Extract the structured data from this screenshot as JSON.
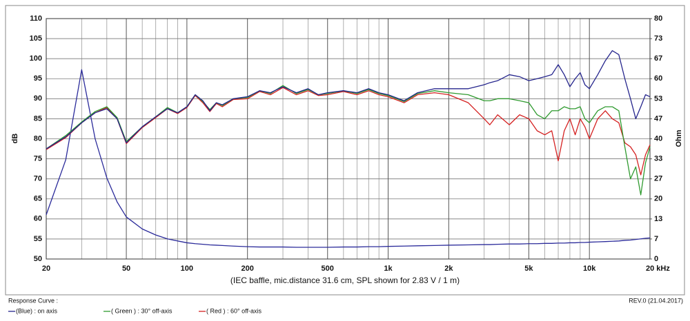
{
  "chart_data": {
    "type": "line",
    "subtitle": "(IEC baffle, mic.distance 31.6 cm, SPL shown for 2.83 V / 1 m)",
    "y_label": "dB",
    "y2_label": "Ohm",
    "legend_title": "Response Curve :",
    "revision": "REV.0 (21.04.2017)",
    "x_scale": "log",
    "grid": true,
    "xlim": [
      20,
      20000
    ],
    "xticks": [
      20,
      50,
      100,
      200,
      500,
      {
        "value": 1000,
        "label": "1k"
      },
      {
        "value": 2000,
        "label": "2k"
      },
      {
        "value": 5000,
        "label": "5k"
      },
      {
        "value": 10000,
        "label": "10k"
      },
      {
        "value": 20000,
        "label": "20 kHz"
      }
    ],
    "xgrid": [
      30,
      40,
      60,
      70,
      80,
      90,
      300,
      400,
      600,
      700,
      800,
      900,
      3000,
      4000,
      6000,
      7000,
      8000,
      9000
    ],
    "ylim": [
      50,
      110
    ],
    "yticks": [
      50,
      55,
      60,
      65,
      70,
      75,
      80,
      85,
      90,
      95,
      100,
      105,
      110
    ],
    "y2lim": [
      0,
      80
    ],
    "y2ticks": [
      0,
      {
        "value": 6.67,
        "label": "7"
      },
      {
        "value": 13.33,
        "label": "13"
      },
      20,
      {
        "value": 26.67,
        "label": "27"
      },
      {
        "value": 33.33,
        "label": "33"
      },
      40,
      {
        "value": 46.67,
        "label": "47"
      },
      {
        "value": 53.33,
        "label": "53"
      },
      60,
      {
        "value": 66.67,
        "label": "67"
      },
      {
        "value": 73.33,
        "label": "73"
      },
      80
    ],
    "x": [
      20,
      25,
      30,
      35,
      40,
      45,
      50,
      60,
      70,
      80,
      90,
      100,
      110,
      120,
      130,
      140,
      150,
      170,
      200,
      230,
      260,
      300,
      350,
      400,
      450,
      500,
      600,
      700,
      800,
      900,
      1000,
      1200,
      1400,
      1700,
      2000,
      2500,
      3000,
      3200,
      3500,
      4000,
      4500,
      5000,
      5500,
      6000,
      6500,
      7000,
      7500,
      8000,
      8500,
      9000,
      9500,
      10000,
      11000,
      12000,
      13000,
      14000,
      15000,
      16000,
      17000,
      18000,
      19000,
      20000
    ],
    "series": [
      {
        "name": "(Blue) : on axis",
        "color": "#24248c",
        "values": [
          77.5,
          80.5,
          84,
          86.5,
          87.5,
          85,
          79,
          83,
          85.5,
          87.5,
          86.5,
          88,
          91,
          89.5,
          87,
          89,
          88.5,
          90,
          90.5,
          92,
          91.5,
          93,
          91.5,
          92.5,
          91,
          91.5,
          92,
          91.5,
          92.5,
          91.5,
          91,
          89.5,
          91.5,
          92.5,
          92.5,
          92.5,
          93.5,
          94,
          94.5,
          96,
          95.5,
          94.5,
          95,
          95.5,
          96,
          98.5,
          96,
          93,
          95,
          96.5,
          93.5,
          92.5,
          96,
          99.5,
          102,
          101,
          95,
          90,
          85,
          88,
          91,
          90.5
        ]
      },
      {
        "name": "( Green ) : 30° off-axis",
        "color": "#2f9a2f",
        "values": [
          77.5,
          80.8,
          84.2,
          86.8,
          88,
          85.3,
          79.3,
          83,
          85.5,
          87.8,
          86.5,
          88,
          91,
          89.3,
          87.3,
          89,
          88.3,
          90,
          90.3,
          92,
          91.3,
          93.3,
          91.3,
          92.3,
          91,
          91.3,
          92,
          91.3,
          92.3,
          91.3,
          90.8,
          89.3,
          91.3,
          92,
          91.5,
          91,
          89.5,
          89.5,
          90,
          90,
          89.5,
          89,
          86,
          85,
          87,
          87,
          88,
          87.5,
          87.5,
          88,
          85,
          84,
          87,
          88,
          88,
          87,
          78,
          70,
          73,
          66,
          74,
          78
        ]
      },
      {
        "name": "( Red ) : 60° off-axis",
        "color": "#d42020",
        "values": [
          77.3,
          80.3,
          84,
          86.5,
          87.8,
          85,
          78.8,
          82.8,
          85.3,
          87.5,
          86.3,
          87.8,
          90.8,
          89,
          86.8,
          88.8,
          88,
          89.8,
          90,
          91.8,
          91,
          92.8,
          91,
          92,
          90.8,
          91,
          91.8,
          91,
          92,
          91,
          90.5,
          89,
          91,
          91.5,
          91,
          89,
          85,
          83.5,
          86,
          83.5,
          86,
          85,
          82,
          81,
          82,
          74.5,
          82,
          85,
          81,
          85,
          83,
          80,
          85,
          87,
          85,
          84,
          79,
          78,
          76,
          71,
          76,
          78.5
        ]
      },
      {
        "color": "#2a2a9a",
        "axis": "y2",
        "values": [
          14.7,
          33,
          63,
          40,
          27,
          19,
          14,
          10,
          8,
          6.7,
          6,
          5.4,
          5.1,
          4.9,
          4.7,
          4.6,
          4.5,
          4.3,
          4.1,
          4,
          4,
          4,
          3.9,
          3.9,
          3.9,
          3.9,
          4,
          4,
          4.1,
          4.1,
          4.2,
          4.3,
          4.4,
          4.5,
          4.6,
          4.7,
          4.8,
          4.8,
          4.9,
          5,
          5,
          5.1,
          5.1,
          5.2,
          5.2,
          5.3,
          5.3,
          5.4,
          5.4,
          5.5,
          5.5,
          5.6,
          5.7,
          5.8,
          5.9,
          6,
          6.2,
          6.3,
          6.5,
          6.7,
          6.9,
          7
        ]
      }
    ]
  }
}
